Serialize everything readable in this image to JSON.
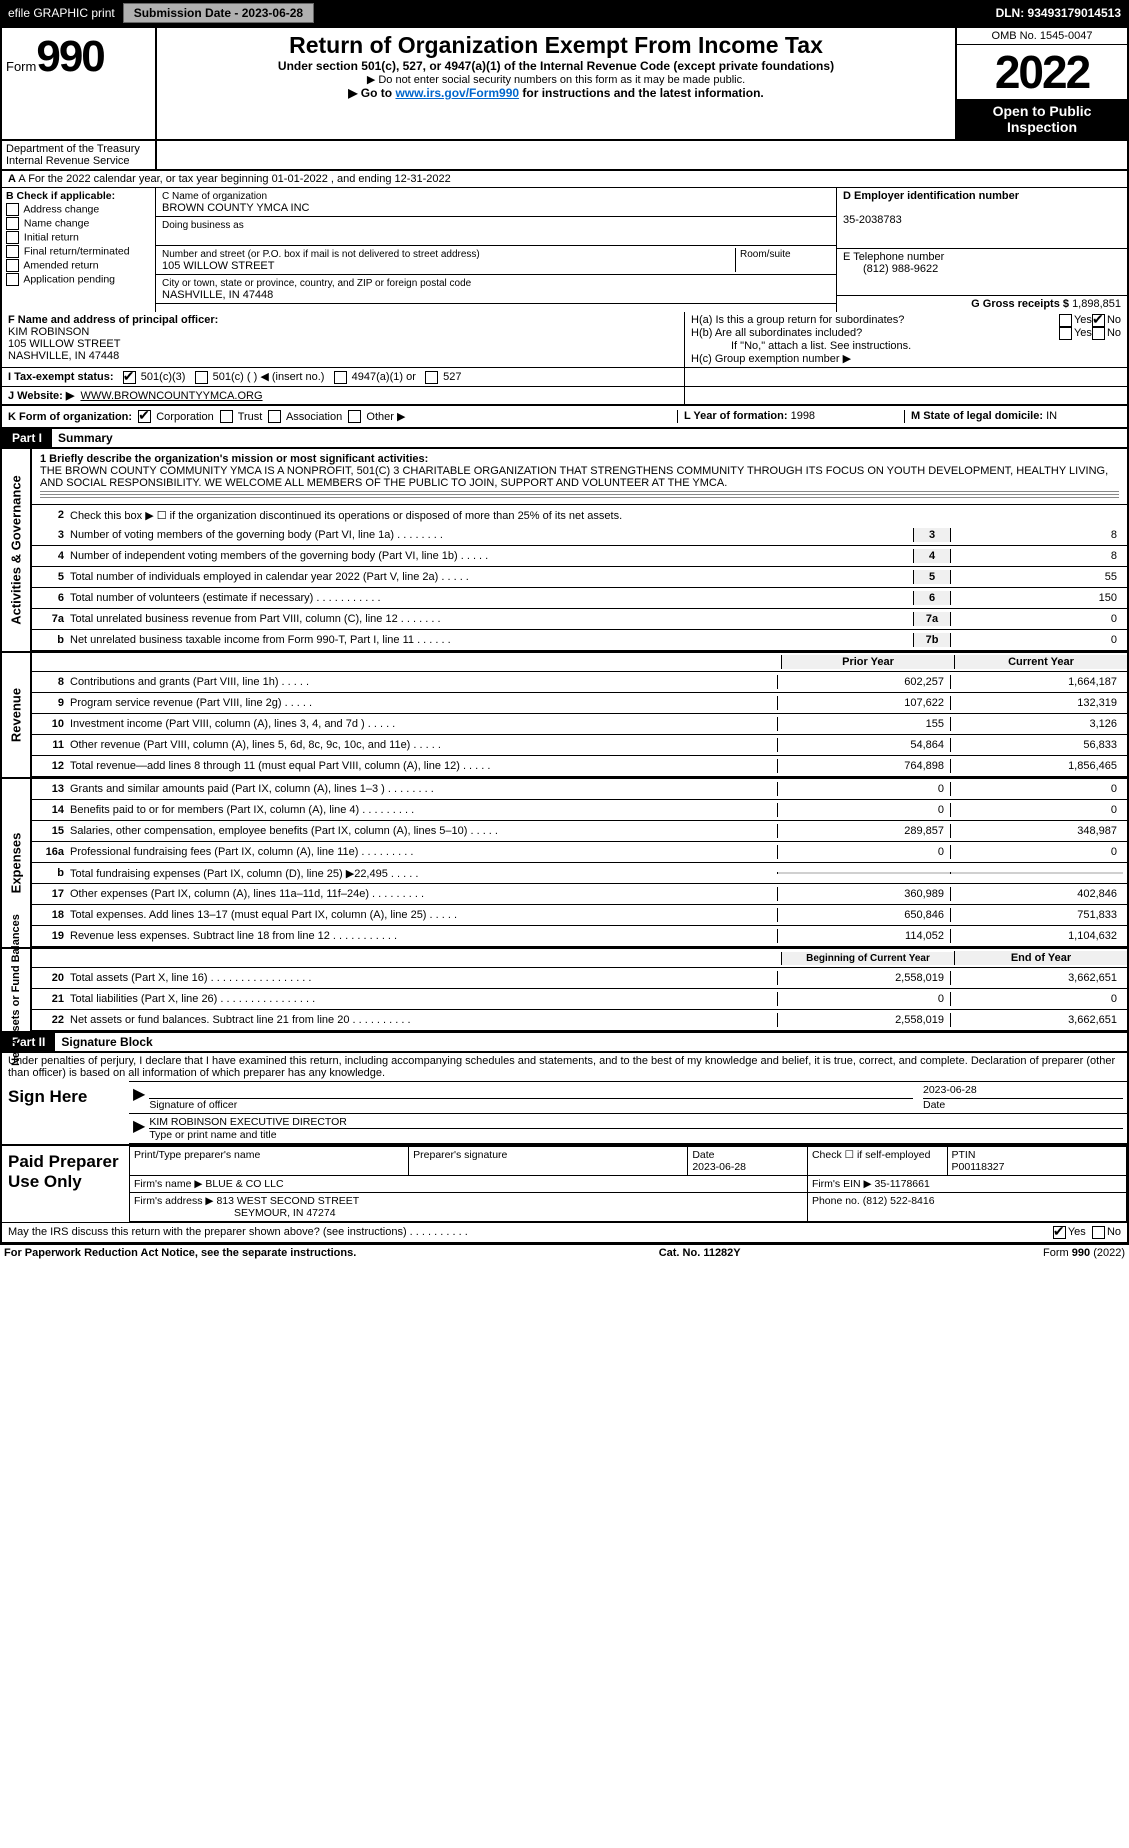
{
  "topbar": {
    "efile": "efile GRAPHIC print",
    "submission": "Submission Date - 2023-06-28",
    "dln": "DLN: 93493179014513"
  },
  "header": {
    "form_prefix": "Form",
    "form_number": "990",
    "title": "Return of Organization Exempt From Income Tax",
    "subtitle": "Under section 501(c), 527, or 4947(a)(1) of the Internal Revenue Code (except private foundations)",
    "note1": "▶ Do not enter social security numbers on this form as it may be made public.",
    "note2_pre": "▶ Go to ",
    "note2_link": "www.irs.gov/Form990",
    "note2_post": " for instructions and the latest information.",
    "omb": "OMB No. 1545-0047",
    "year": "2022",
    "open": "Open to Public Inspection",
    "dept": "Department of the Treasury",
    "irs": "Internal Revenue Service"
  },
  "rowA": "A For the 2022 calendar year, or tax year beginning 01-01-2022    , and ending 12-31-2022",
  "boxB": {
    "label": "B Check if applicable:",
    "items": [
      "Address change",
      "Name change",
      "Initial return",
      "Final return/terminated",
      "Amended return",
      "Application pending"
    ]
  },
  "boxC": {
    "name_label": "C Name of organization",
    "name": "BROWN COUNTY YMCA INC",
    "dba_label": "Doing business as",
    "street_label": "Number and street (or P.O. box if mail is not delivered to street address)",
    "room_label": "Room/suite",
    "street": "105 WILLOW STREET",
    "city_label": "City or town, state or province, country, and ZIP or foreign postal code",
    "city": "NASHVILLE, IN  47448"
  },
  "boxD": {
    "label": "D Employer identification number",
    "value": "35-2038783"
  },
  "boxE": {
    "label": "E Telephone number",
    "value": "(812) 988-9622"
  },
  "boxG": {
    "label": "G Gross receipts $",
    "value": "1,898,851"
  },
  "boxF": {
    "label": "F  Name and address of principal officer:",
    "name": "KIM ROBINSON",
    "street": "105 WILLOW STREET",
    "city": "NASHVILLE, IN  47448"
  },
  "boxH": {
    "ha": "H(a)  Is this a group return for subordinates?",
    "hb": "H(b)  Are all subordinates included?",
    "hb_note": "If \"No,\" attach a list. See instructions.",
    "hc": "H(c)  Group exemption number ▶",
    "yes": "Yes",
    "no": "No"
  },
  "boxI": {
    "label": "I   Tax-exempt status:",
    "c3": "501(c)(3)",
    "c": "501(c) (   ) ◀ (insert no.)",
    "a1": "4947(a)(1) or",
    "s527": "527"
  },
  "boxJ": {
    "label": "J   Website: ▶",
    "value": "WWW.BROWNCOUNTYYMCA.ORG"
  },
  "boxK": {
    "label": "K Form of organization:",
    "corp": "Corporation",
    "trust": "Trust",
    "assoc": "Association",
    "other": "Other ▶"
  },
  "boxL": {
    "label": "L Year of formation:",
    "value": "1998"
  },
  "boxM": {
    "label": "M State of legal domicile:",
    "value": "IN"
  },
  "part1": {
    "hdr": "Part I",
    "title": "Summary"
  },
  "mission": {
    "label": "1  Briefly describe the organization's mission or most significant activities:",
    "text": "THE BROWN COUNTY COMMUNITY YMCA IS A NONPROFIT, 501(C) 3 CHARITABLE ORGANIZATION THAT STRENGTHENS COMMUNITY THROUGH ITS FOCUS ON YOUTH DEVELOPMENT, HEALTHY LIVING, AND SOCIAL RESPONSIBILITY. WE WELCOME ALL MEMBERS OF THE PUBLIC TO JOIN, SUPPORT AND VOLUNTEER AT THE YMCA."
  },
  "sidetabs": {
    "gov": "Activities & Governance",
    "rev": "Revenue",
    "exp": "Expenses",
    "net": "Net Assets or Fund Balances"
  },
  "gov_lines": [
    {
      "n": "2",
      "t": "Check this box ▶ ☐  if the organization discontinued its operations or disposed of more than 25% of its net assets."
    },
    {
      "n": "3",
      "t": "Number of voting members of the governing body (Part VI, line 1a)  .    .    .    .    .    .    .    .",
      "k": "3",
      "v": "8"
    },
    {
      "n": "4",
      "t": "Number of independent voting members of the governing body (Part VI, line 1b)  .    .    .    .    .",
      "k": "4",
      "v": "8"
    },
    {
      "n": "5",
      "t": "Total number of individuals employed in calendar year 2022 (Part V, line 2a)  .    .    .    .    .",
      "k": "5",
      "v": "55"
    },
    {
      "n": "6",
      "t": "Total number of volunteers (estimate if necessary)   .    .    .    .    .    .    .    .    .    .    .",
      "k": "6",
      "v": "150"
    },
    {
      "n": "7a",
      "t": "Total unrelated business revenue from Part VIII, column (C), line 12  .    .    .    .    .    .    .",
      "k": "7a",
      "v": "0"
    },
    {
      "n": "b",
      "t": "Net unrelated business taxable income from Form 990-T, Part I, line 11  .    .    .    .    .    .",
      "k": "7b",
      "v": "0"
    }
  ],
  "cols": {
    "prior": "Prior Year",
    "curr": "Current Year"
  },
  "rev_lines": [
    {
      "n": "8",
      "t": "Contributions and grants (Part VIII, line 1h)",
      "p": "602,257",
      "c": "1,664,187"
    },
    {
      "n": "9",
      "t": "Program service revenue (Part VIII, line 2g)",
      "p": "107,622",
      "c": "132,319"
    },
    {
      "n": "10",
      "t": "Investment income (Part VIII, column (A), lines 3, 4, and 7d )",
      "p": "155",
      "c": "3,126"
    },
    {
      "n": "11",
      "t": "Other revenue (Part VIII, column (A), lines 5, 6d, 8c, 9c, 10c, and 11e)",
      "p": "54,864",
      "c": "56,833"
    },
    {
      "n": "12",
      "t": "Total revenue—add lines 8 through 11 (must equal Part VIII, column (A), line 12)",
      "p": "764,898",
      "c": "1,856,465"
    }
  ],
  "exp_lines": [
    {
      "n": "13",
      "t": "Grants and similar amounts paid (Part IX, column (A), lines 1–3 )   .    .    .",
      "p": "0",
      "c": "0"
    },
    {
      "n": "14",
      "t": "Benefits paid to or for members (Part IX, column (A), line 4)  .    .    .    .",
      "p": "0",
      "c": "0"
    },
    {
      "n": "15",
      "t": "Salaries, other compensation, employee benefits (Part IX, column (A), lines 5–10)",
      "p": "289,857",
      "c": "348,987"
    },
    {
      "n": "16a",
      "t": "Professional fundraising fees (Part IX, column (A), line 11e)  .    .    .    .",
      "p": "0",
      "c": "0"
    },
    {
      "n": "b",
      "t": "Total fundraising expenses (Part IX, column (D), line 25) ▶22,495",
      "p": "",
      "c": "",
      "shaded": true
    },
    {
      "n": "17",
      "t": "Other expenses (Part IX, column (A), lines 11a–11d, 11f–24e)  .    .    .    .",
      "p": "360,989",
      "c": "402,846"
    },
    {
      "n": "18",
      "t": "Total expenses. Add lines 13–17 (must equal Part IX, column (A), line 25)",
      "p": "650,846",
      "c": "751,833"
    },
    {
      "n": "19",
      "t": "Revenue less expenses. Subtract line 18 from line 12  .    .    .    .    .    .",
      "p": "114,052",
      "c": "1,104,632"
    }
  ],
  "net_cols": {
    "beg": "Beginning of Current Year",
    "end": "End of Year"
  },
  "net_lines": [
    {
      "n": "20",
      "t": "Total assets (Part X, line 16)  .    .    .    .    .    .    .    .    .    .    .    .",
      "p": "2,558,019",
      "c": "3,662,651"
    },
    {
      "n": "21",
      "t": "Total liabilities (Part X, line 26)   .    .    .    .    .    .    .    .    .    .    .",
      "p": "0",
      "c": "0"
    },
    {
      "n": "22",
      "t": "Net assets or fund balances. Subtract line 21 from line 20  .    .    .    .    .",
      "p": "2,558,019",
      "c": "3,662,651"
    }
  ],
  "part2": {
    "hdr": "Part II",
    "title": "Signature Block",
    "penalty": "Under penalties of perjury, I declare that I have examined this return, including accompanying schedules and statements, and to the best of my knowledge and belief, it is true, correct, and complete. Declaration of preparer (other than officer) is based on all information of which preparer has any knowledge."
  },
  "sign": {
    "here": "Sign Here",
    "sig_officer": "Signature of officer",
    "date": "Date",
    "date_val": "2023-06-28",
    "name": "KIM ROBINSON  EXECUTIVE DIRECTOR",
    "name_label": "Type or print name and title"
  },
  "paid": {
    "label": "Paid Preparer Use Only",
    "hdr": [
      "Print/Type preparer's name",
      "Preparer's signature",
      "Date",
      "Check ☐ if self-employed",
      "PTIN"
    ],
    "r1": [
      "",
      "",
      "2023-06-28",
      "",
      "P00118327"
    ],
    "firm": "Firm's name   ▶",
    "firm_v": "BLUE & CO LLC",
    "ein": "Firm's EIN ▶",
    "ein_v": "35-1178661",
    "addr": "Firm's address ▶",
    "addr_v1": "813 WEST SECOND STREET",
    "addr_v2": "SEYMOUR, IN  47274",
    "phone": "Phone no.",
    "phone_v": "(812) 522-8416"
  },
  "discuss": {
    "q": "May the IRS discuss this return with the preparer shown above? (see instructions)   .    .    .    .    .    .    .    .    .    .",
    "yes": "Yes",
    "no": "No"
  },
  "footer": {
    "l": "For Paperwork Reduction Act Notice, see the separate instructions.",
    "m": "Cat. No. 11282Y",
    "r": "Form 990 (2022)"
  }
}
